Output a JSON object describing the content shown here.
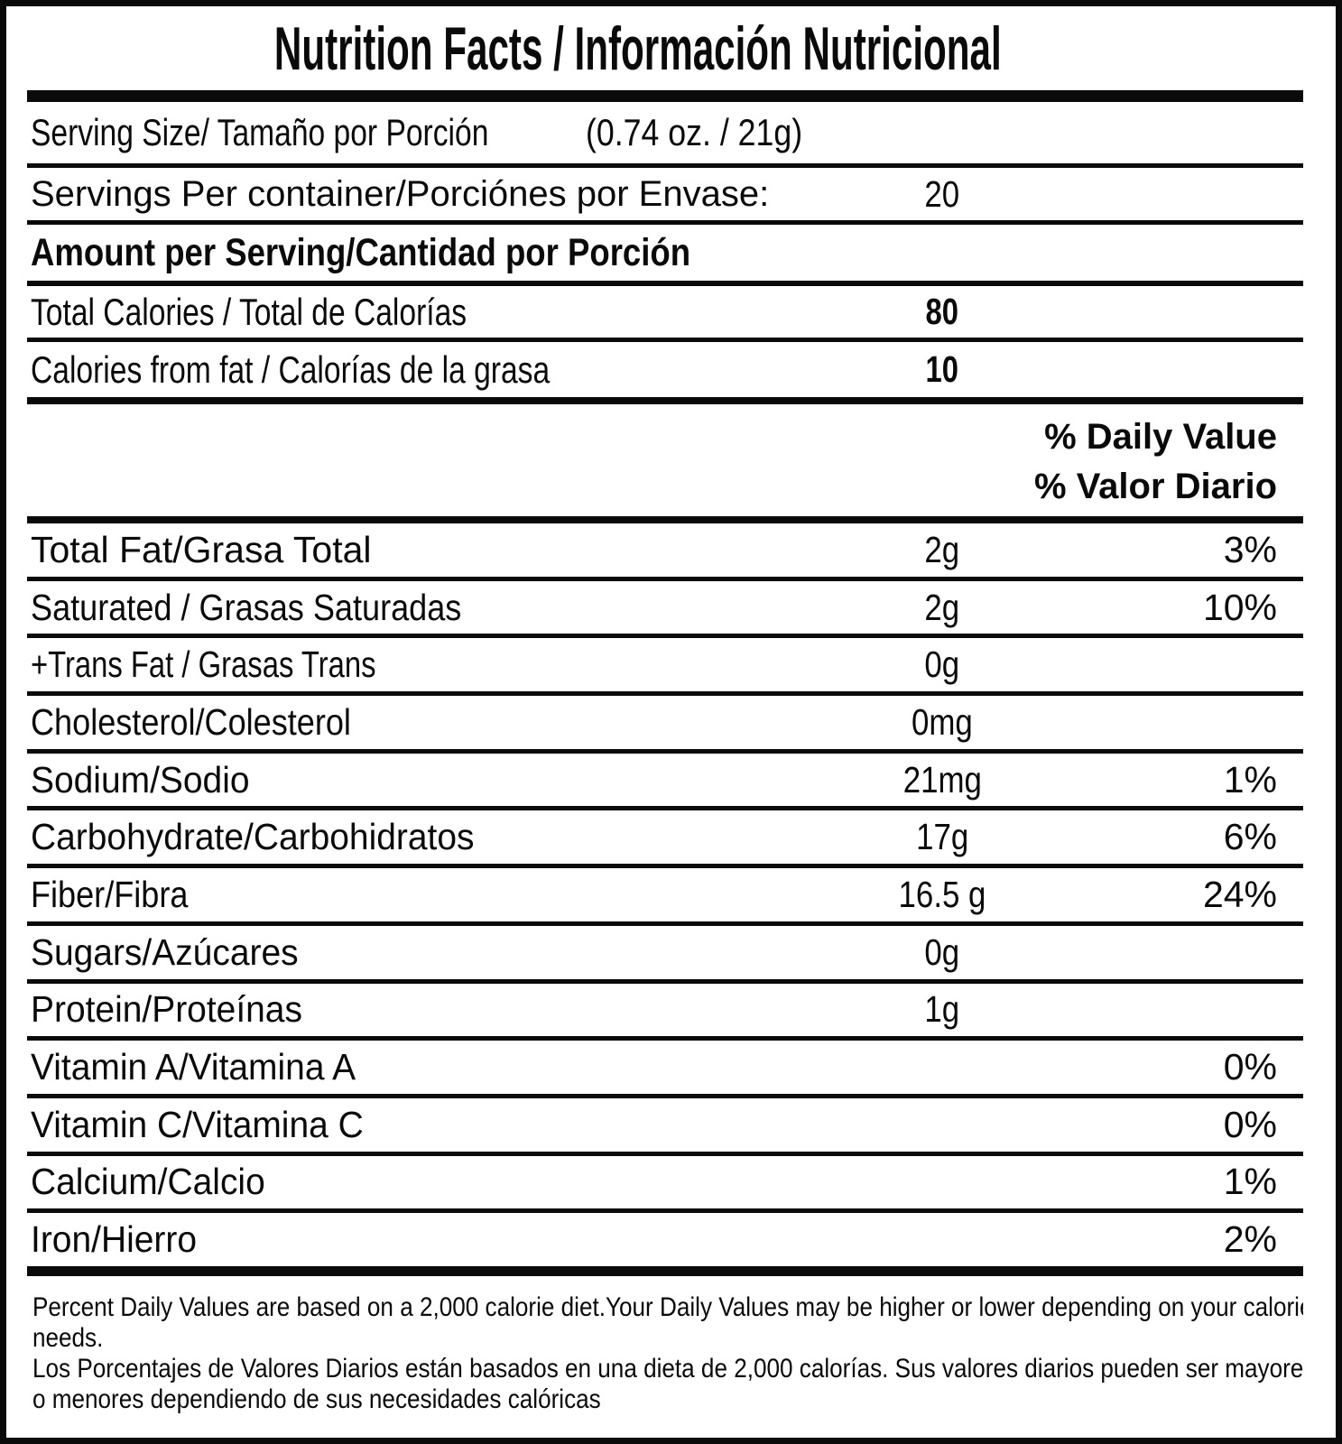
{
  "title": "Nutrition Facts / Información Nutricional",
  "serving": {
    "label": "Serving Size/ Tamaño por Porción",
    "value": "(0.74 oz. / 21g)"
  },
  "servings_per_container": {
    "label": "Servings Per container/Porciónes por Envase:",
    "value": "20"
  },
  "amount_header": "Amount per Serving/Cantidad por Porción",
  "calories": [
    {
      "label": "Total Calories / Total de Calorías",
      "value": "80"
    },
    {
      "label": "Calories from fat / Calorías de la grasa",
      "value": "10"
    }
  ],
  "daily_value_header": {
    "line1": "% Daily Value",
    "line2": "% Valor Diario"
  },
  "nutrients": [
    {
      "label": "Total Fat/Grasa Total",
      "value": "2g",
      "dv": "3%"
    },
    {
      "label": "Saturated / Grasas Saturadas",
      "value": "2g",
      "dv": "10%"
    },
    {
      "label": "+Trans Fat / Grasas Trans",
      "value": "0g",
      "dv": ""
    },
    {
      "label": "Cholesterol/Colesterol",
      "value": "0mg",
      "dv": ""
    },
    {
      "label": "Sodium/Sodio",
      "value": "21mg",
      "dv": "1%"
    },
    {
      "label": "Carbohydrate/Carbohidratos",
      "value": "17g",
      "dv": "6%"
    },
    {
      "label": "Fiber/Fibra",
      "value": "16.5 g",
      "dv": "24%"
    },
    {
      "label": "Sugars/Azúcares",
      "value": "0g",
      "dv": ""
    },
    {
      "label": "Protein/Proteínas",
      "value": "1g",
      "dv": ""
    },
    {
      "label": "Vitamin A/Vitamina A",
      "value": "",
      "dv": "0%"
    },
    {
      "label": "Vitamin C/Vitamina C",
      "value": "",
      "dv": "0%"
    },
    {
      "label": "Calcium/Calcio",
      "value": "",
      "dv": "1%"
    },
    {
      "label": "Iron/Hierro",
      "value": "",
      "dv": "2%"
    }
  ],
  "footnotes": {
    "english": "Percent Daily Values are based on a 2,000 calorie diet.Your Daily Values may be higher or lower depending on your calorie needs.",
    "spanish": "Los Porcentajes de Valores Diarios están basados en una dieta de 2,000 calorías. Sus valores diarios pueden ser mayores o menores dependiendo de sus necesidades calóricas"
  },
  "colors": {
    "ink": "#0a0a0a",
    "background": "#ffffff"
  }
}
